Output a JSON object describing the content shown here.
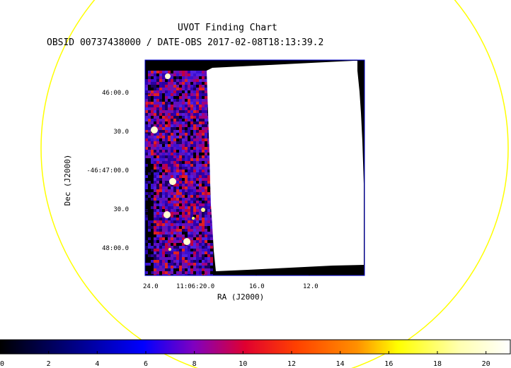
{
  "header": {
    "title": "UVOT Finding Chart",
    "subtitle": "OBSID 00737438000 / DATE-OBS 2017-02-08T18:13:39.2"
  },
  "axes": {
    "xlabel": "RA (J2000)",
    "ylabel": "Dec (J2000)",
    "ra_ticks": [
      "24.0",
      "11:06:20.0",
      "16.0",
      "12.0"
    ],
    "dec_ticks": [
      "46:00.0",
      "30.0",
      "-46:47:00.0",
      "30.0",
      "48:00.0"
    ]
  },
  "colorbar": {
    "ticks": [
      "0",
      "2",
      "4",
      "6",
      "8",
      "10",
      "12",
      "14",
      "16",
      "18",
      "20"
    ],
    "min": 0,
    "max": 21
  },
  "colors": {
    "circle": "#ffff00",
    "frame": "#0000cc",
    "background": "#ffffff"
  }
}
